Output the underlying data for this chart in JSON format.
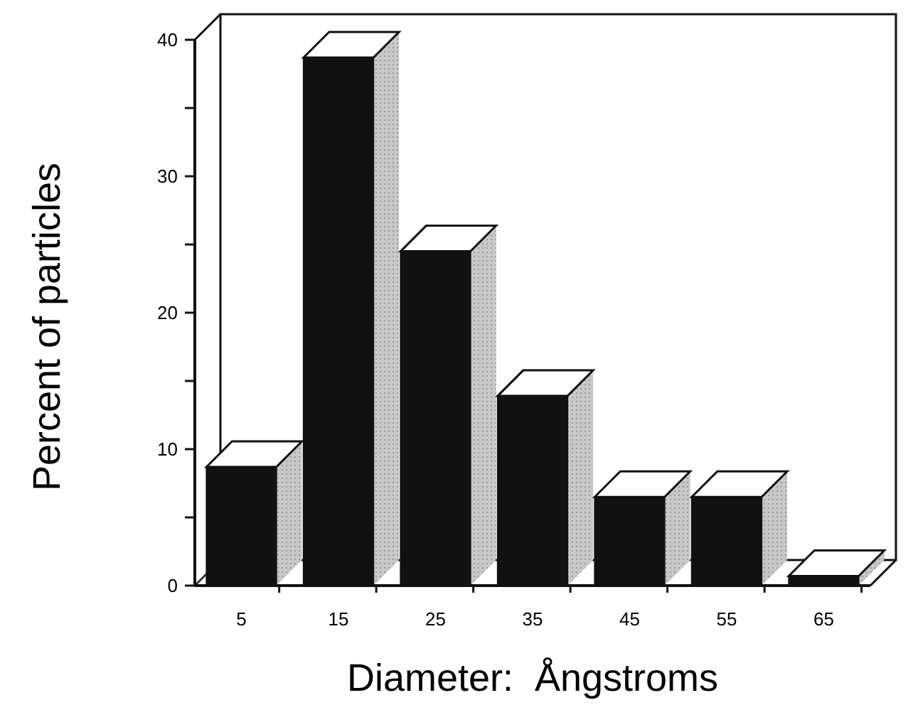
{
  "chart_data": {
    "type": "bar",
    "xlabel": "Diameter:  Ångstroms",
    "ylabel": "Percent of particles",
    "categories": [
      "5",
      "15",
      "25",
      "35",
      "45",
      "55",
      "65"
    ],
    "values": [
      8.7,
      38.7,
      24.5,
      13.9,
      6.5,
      6.5,
      0.7
    ],
    "color": "#111111",
    "ylim": [
      0,
      40
    ],
    "yticks": [
      0,
      {
        "value": 5,
        "label": null
      },
      10,
      {
        "value": 15,
        "label": null
      },
      20,
      {
        "value": 25,
        "label": null
      },
      30,
      {
        "value": 35,
        "label": null
      },
      40
    ],
    "grid": false
  }
}
